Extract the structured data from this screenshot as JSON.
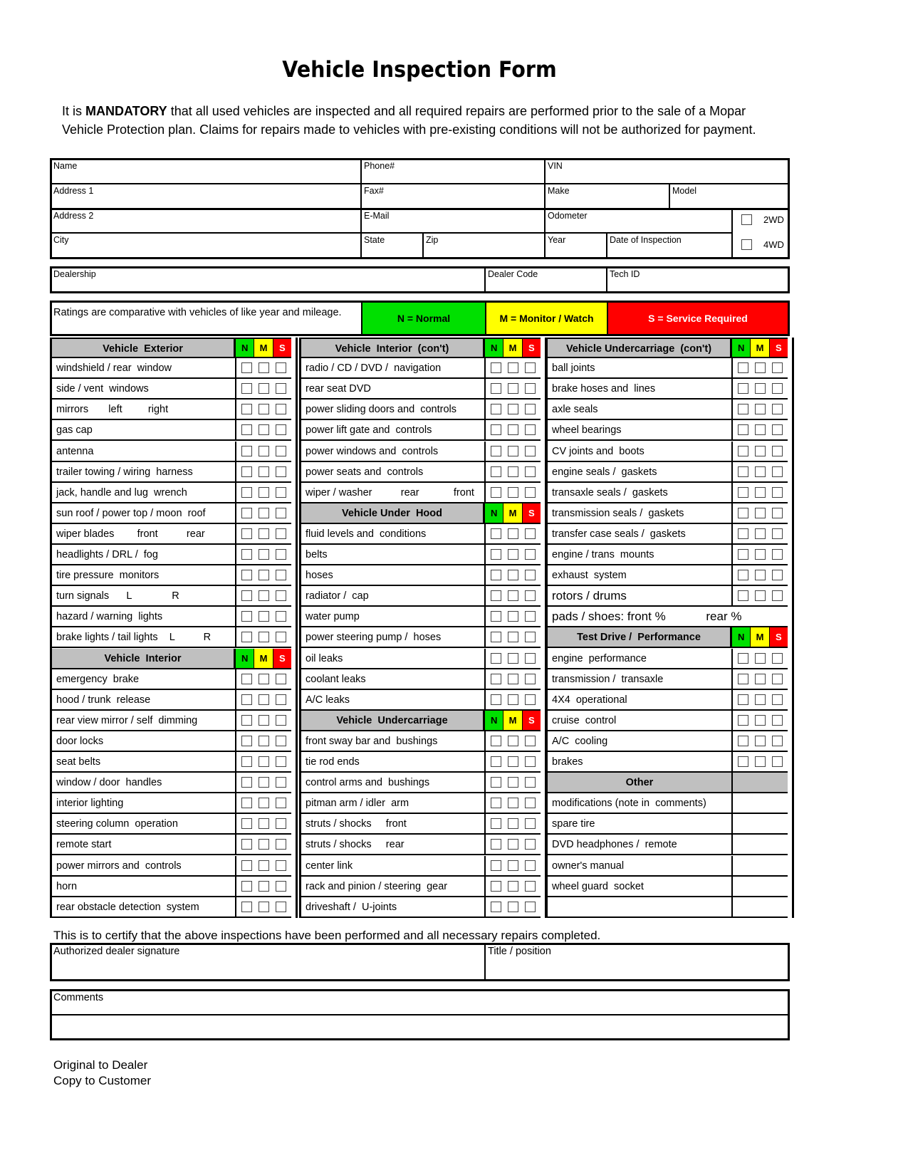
{
  "title": "Vehicle Inspection Form",
  "intro": {
    "pre": "It is ",
    "bold": "MANDATORY",
    "post": " that all used vehicles are inspected and all required repairs are performed prior to the sale of a Mopar Vehicle Protection plan. Claims for repairs made to vehicles with pre-existing conditions will not be authorized for payment."
  },
  "customer": {
    "name": "Name",
    "phone": "Phone#",
    "vin": "VIN",
    "address1": "Address 1",
    "fax": "Fax#",
    "make": "Make",
    "model": "Model",
    "address2": "Address 2",
    "email": "E-Mail",
    "odometer": "Odometer",
    "opt_2wd": "2WD",
    "city": "City",
    "state": "State",
    "zip": "Zip",
    "year": "Year",
    "date": "Date of Inspection",
    "opt_4wd": "4WD"
  },
  "dealer": {
    "dealership": "Dealership",
    "code": "Dealer Code",
    "tech": "Tech ID"
  },
  "ratings": {
    "note": "Ratings are comparative with vehicles of like year and mileage.",
    "normal": "N = Normal",
    "monitor": "M = Monitor /  Watch",
    "service": "S = Service  Required",
    "n": "N",
    "m": "M",
    "s": "S",
    "colors": {
      "n": "#00e000",
      "m": "#ffff00",
      "s": "#ff0000",
      "header": "#c0c0c0"
    }
  },
  "columns": [
    [
      {
        "t": "h",
        "label": "Vehicle  Exterior"
      },
      {
        "label": "windshield / rear  window"
      },
      {
        "label": "side / vent  windows"
      },
      {
        "label": "mirrors       left         right"
      },
      {
        "label": "gas cap"
      },
      {
        "label": "antenna"
      },
      {
        "label": "trailer towing / wiring  harness"
      },
      {
        "label": "jack, handle and lug  wrench"
      },
      {
        "label": "sun roof / power top / moon  roof"
      },
      {
        "label": "wiper blades        front          rear"
      },
      {
        "label": "headlights / DRL /  fog"
      },
      {
        "label": "tire pressure  monitors"
      },
      {
        "label": "turn signals      L              R"
      },
      {
        "label": "hazard / warning  lights"
      },
      {
        "label": "brake lights / tail lights    L          R"
      },
      {
        "t": "h",
        "label": "Vehicle  Interior"
      },
      {
        "label": "emergency  brake"
      },
      {
        "label": "hood / trunk  release"
      },
      {
        "label": "rear view mirror / self  dimming"
      },
      {
        "label": "door locks"
      },
      {
        "label": "seat belts"
      },
      {
        "label": "window / door  handles"
      },
      {
        "label": "interior lighting"
      },
      {
        "label": "steering column  operation"
      },
      {
        "label": "remote start"
      },
      {
        "label": "power mirrors and  controls"
      },
      {
        "label": "horn"
      },
      {
        "label": "rear obstacle detection  system"
      }
    ],
    [
      {
        "t": "h",
        "label": "Vehicle  Interior  (con't)"
      },
      {
        "label": "radio / CD / DVD /  navigation"
      },
      {
        "label": "rear seat DVD"
      },
      {
        "label": "power sliding doors and  controls"
      },
      {
        "label": "power lift gate and  controls"
      },
      {
        "label": "power windows and  controls"
      },
      {
        "label": "power seats and  controls"
      },
      {
        "label": "wiper / washer          rear            front"
      },
      {
        "t": "h",
        "label": "Vehicle Under  Hood"
      },
      {
        "label": "fluid levels and  conditions"
      },
      {
        "label": "belts"
      },
      {
        "label": "hoses"
      },
      {
        "label": "radiator /  cap"
      },
      {
        "label": "water pump"
      },
      {
        "label": "power steering pump /  hoses"
      },
      {
        "label": "oil leaks"
      },
      {
        "label": "coolant leaks"
      },
      {
        "label": "A/C leaks"
      },
      {
        "t": "h",
        "label": "Vehicle  Undercarriage"
      },
      {
        "label": "front sway bar and  bushings"
      },
      {
        "label": "tie rod ends"
      },
      {
        "label": "control arms and  bushings"
      },
      {
        "label": "pitman arm / idler  arm"
      },
      {
        "label": "struts / shocks     front"
      },
      {
        "label": "struts / shocks     rear"
      },
      {
        "label": "center link"
      },
      {
        "label": "rack and pinion / steering  gear"
      },
      {
        "label": "driveshaft /  U-joints"
      }
    ],
    [
      {
        "t": "h",
        "label": "Vehicle Undercarriage  (con't)"
      },
      {
        "label": "ball joints"
      },
      {
        "label": "brake hoses and  lines"
      },
      {
        "label": "axle seals"
      },
      {
        "label": "wheel bearings"
      },
      {
        "label": "CV joints and  boots"
      },
      {
        "label": "engine seals /  gaskets"
      },
      {
        "label": "transaxle seals /  gaskets"
      },
      {
        "label": "transmission seals /  gaskets"
      },
      {
        "label": "transfer case seals /  gaskets"
      },
      {
        "label": "engine / trans  mounts"
      },
      {
        "label": "exhaust  system"
      },
      {
        "label": "rotors / drums",
        "big": true
      },
      {
        "t": "n",
        "label": "pads / shoes: front %            rear %"
      },
      {
        "t": "h",
        "label": "Test Drive /  Performance"
      },
      {
        "label": "engine  performance"
      },
      {
        "label": "transmission /  transaxle"
      },
      {
        "label": "4X4  operational"
      },
      {
        "label": "cruise  control"
      },
      {
        "label": "A/C  cooling"
      },
      {
        "label": "brakes"
      },
      {
        "t": "o",
        "label": "Other"
      },
      {
        "t": "x",
        "label": "modifications (note in  comments)"
      },
      {
        "t": "x",
        "label": "spare tire"
      },
      {
        "t": "x",
        "label": "DVD headphones /  remote"
      },
      {
        "t": "x",
        "label": "owner's manual"
      },
      {
        "t": "x",
        "label": "wheel guard  socket"
      },
      {
        "t": "x",
        "label": ""
      }
    ]
  ],
  "certify": "This is to certify that the above inspections have been performed and all necessary repairs completed.",
  "signature": {
    "dealer": "Authorized dealer  signature",
    "title": "Title /  position"
  },
  "comments": "Comments",
  "footer": [
    "Original to Dealer",
    "Copy to Customer"
  ]
}
